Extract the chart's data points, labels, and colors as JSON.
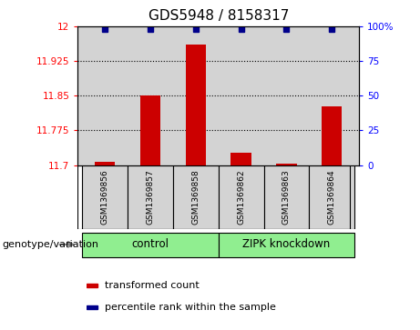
{
  "title": "GDS5948 / 8158317",
  "samples": [
    "GSM1369856",
    "GSM1369857",
    "GSM1369858",
    "GSM1369862",
    "GSM1369863",
    "GSM1369864"
  ],
  "transformed_counts": [
    11.706,
    11.85,
    11.96,
    11.727,
    11.703,
    11.827
  ],
  "percentile_ranks": [
    98,
    98,
    98,
    98,
    98,
    98
  ],
  "ylim_left": [
    11.7,
    12.0
  ],
  "ylim_right": [
    0,
    100
  ],
  "yticks_left": [
    11.7,
    11.775,
    11.85,
    11.925,
    12.0
  ],
  "yticks_right": [
    0,
    25,
    50,
    75,
    100
  ],
  "ytick_labels_left": [
    "11.7",
    "11.775",
    "11.85",
    "11.925",
    "12"
  ],
  "ytick_labels_right": [
    "0",
    "25",
    "50",
    "75",
    "100%"
  ],
  "groups": [
    {
      "label": "control",
      "indices": [
        0,
        1,
        2
      ],
      "color": "#90EE90"
    },
    {
      "label": "ZIPK knockdown",
      "indices": [
        3,
        4,
        5
      ],
      "color": "#90EE90"
    }
  ],
  "bar_color": "#CC0000",
  "dot_color": "#00008B",
  "bar_width": 0.45,
  "bg_color_plot": "#D3D3D3",
  "bg_color_fig": "#FFFFFF",
  "genotype_label": "genotype/variation",
  "legend_items": [
    {
      "color": "#CC0000",
      "label": "transformed count"
    },
    {
      "color": "#00008B",
      "label": "percentile rank within the sample"
    }
  ],
  "dotted_grid_lines": [
    11.775,
    11.85,
    11.925
  ],
  "title_fontsize": 11,
  "tick_fontsize": 7.5,
  "sample_fontsize": 6.5,
  "group_fontsize": 8.5,
  "legend_fontsize": 8,
  "genotype_fontsize": 8
}
